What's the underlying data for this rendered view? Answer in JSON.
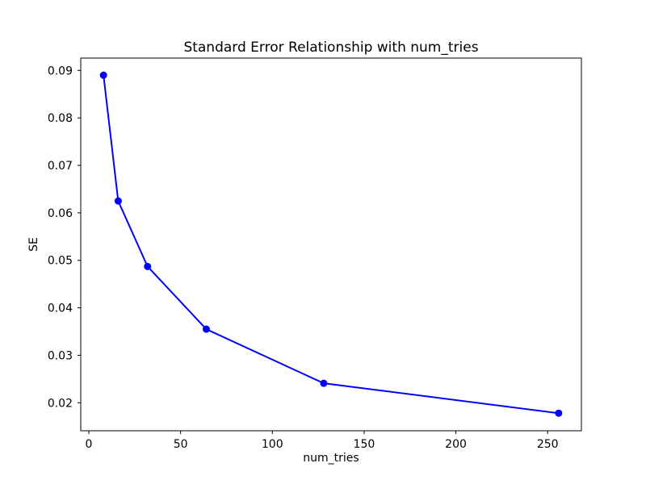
{
  "figure": {
    "background_color": "#ffffff",
    "text_color": "#000000",
    "spine_color": "#000000"
  },
  "chart_data": {
    "type": "line",
    "title": "Standard Error Relationship with num_tries",
    "xlabel": "num_tries",
    "ylabel": "SE",
    "x": [
      8,
      16,
      32,
      64,
      128,
      256
    ],
    "y": [
      0.089,
      0.0625,
      0.0487,
      0.0355,
      0.0241,
      0.0178
    ],
    "line_color": "#0000ff",
    "marker": "o",
    "marker_color": "#0000ff",
    "marker_radius": 4.5,
    "line_width": 2,
    "xlim": [
      -4.4,
      268.4
    ],
    "ylim": [
      0.0141,
      0.0926
    ],
    "xticks": [
      0,
      50,
      100,
      150,
      200,
      250
    ],
    "yticks": [
      0.02,
      0.03,
      0.04,
      0.05,
      0.06,
      0.07,
      0.08,
      0.09
    ],
    "ytick_decimals": 2,
    "grid": false,
    "legend_position": "none"
  }
}
